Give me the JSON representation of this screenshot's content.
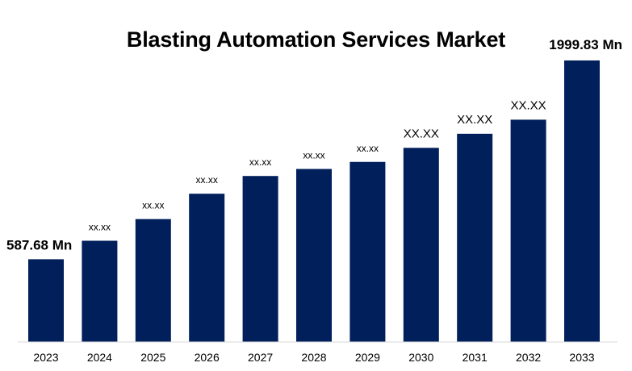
{
  "chart_data": {
    "type": "bar",
    "title": "Blasting Automation Services Market",
    "categories": [
      "2023",
      "2024",
      "2025",
      "2026",
      "2027",
      "2028",
      "2029",
      "2030",
      "2031",
      "2032",
      "2033"
    ],
    "values": [
      587.68,
      719,
      873,
      1053,
      1179,
      1229,
      1279,
      1379,
      1479,
      1579,
      1999.83
    ],
    "data_labels": [
      "587.68 Mn",
      "xx.xx",
      "xx.xx",
      "xx.xx",
      "xx.xx",
      "xx.xx",
      "xx.xx",
      "XX.XX",
      "XX.XX",
      "XX.XX",
      "1999.83 Mn"
    ],
    "ylim": [
      0,
      2200
    ],
    "bar_color": "#001f5b",
    "grid": false,
    "legend": "none"
  }
}
